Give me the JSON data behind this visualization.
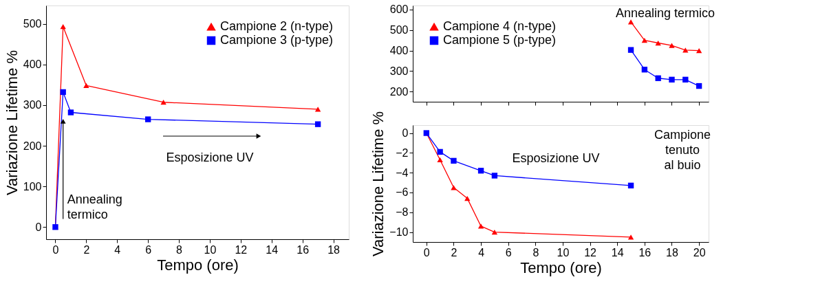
{
  "chart_data": [
    {
      "type": "line",
      "xlabel": "Tempo (ore)",
      "ylabel": "Variazione Lifetime %",
      "xlim": [
        -0.6,
        19
      ],
      "xticks": [
        0,
        2,
        4,
        6,
        8,
        10,
        12,
        14,
        16,
        18
      ],
      "ylim": [
        -30,
        545
      ],
      "yticks": [
        0,
        100,
        200,
        300,
        400,
        500
      ],
      "grid": false,
      "legend": "top right",
      "series": [
        {
          "name": "Campione 2 (n-type)",
          "color": "#ff0000",
          "marker": "triangle",
          "x": [
            0,
            0.5,
            2,
            7,
            17
          ],
          "values": [
            0,
            493,
            348,
            307,
            290
          ]
        },
        {
          "name": "Campione 3 (p-type)",
          "color": "#0000ff",
          "marker": "square",
          "x": [
            0,
            0.5,
            1,
            6,
            17
          ],
          "values": [
            0,
            332,
            282,
            265,
            253
          ]
        }
      ],
      "annotations": [
        {
          "text": "Annealing\ntermico",
          "x": 0.5,
          "y": 267
        },
        "Esposizione UV"
      ]
    },
    {
      "type": "line",
      "xlim": [
        -1,
        20.7
      ],
      "xticks": [
        0,
        2,
        4,
        6,
        8,
        10,
        12,
        14,
        16,
        18,
        20
      ],
      "ylim": [
        150,
        620
      ],
      "yticks": [
        200,
        300,
        400,
        500,
        600
      ],
      "grid": false,
      "legend": "top left",
      "tick_labels": "y",
      "series": [
        {
          "name": "Campione 4 (n-type)",
          "color": "#ff0000",
          "marker": "triangle",
          "x": [
            15,
            16,
            17,
            18,
            19,
            20
          ],
          "values": [
            540,
            450,
            437,
            425,
            402,
            400
          ]
        },
        {
          "name": "Campione 5 (p-type)",
          "color": "#0000ff",
          "marker": "square",
          "x": [
            15,
            16,
            17,
            18,
            19,
            20
          ],
          "values": [
            403,
            307,
            265,
            258,
            258,
            227
          ]
        }
      ],
      "annotations": [
        "Annealing termico",
        "Campione\ntenuto\nal buio"
      ]
    },
    {
      "type": "line",
      "xlabel": "Tempo (ore)",
      "ylabel": "Variazione Lifetime %",
      "xlim": [
        -1,
        20.7
      ],
      "xticks": [
        0,
        2,
        4,
        6,
        8,
        10,
        12,
        14,
        16,
        18,
        20
      ],
      "ylim": [
        -11,
        0.8
      ],
      "yticks": [
        0,
        -2,
        -4,
        -6,
        -8,
        -10
      ],
      "grid": false,
      "series": [
        {
          "color": "#ff0000",
          "marker": "triangle",
          "x": [
            0,
            1,
            2,
            3,
            4,
            5,
            15
          ],
          "values": [
            0,
            -2.7,
            -5.5,
            -6.6,
            -9.4,
            -10,
            -10.5
          ]
        },
        {
          "color": "#0000ff",
          "marker": "square",
          "x": [
            0,
            1,
            2,
            4,
            5,
            15
          ],
          "values": [
            0,
            -1.9,
            -2.8,
            -3.8,
            -4.3,
            -5.3
          ]
        }
      ],
      "annotations": [
        "Esposizione UV"
      ]
    }
  ]
}
